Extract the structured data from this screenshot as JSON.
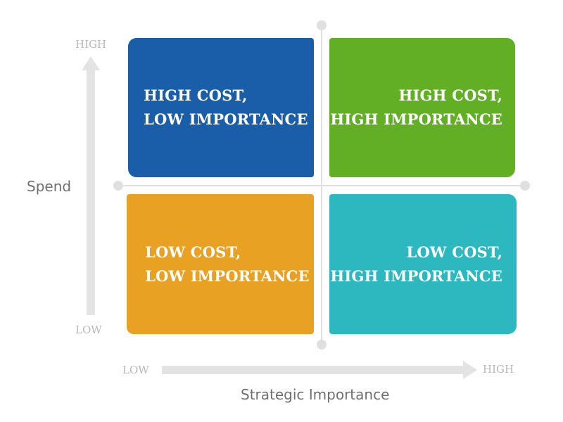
{
  "colors": {
    "top_left": "#1a5da8",
    "top_right": "#62ae25",
    "bottom_left": "#e9a124",
    "bottom_right": "#2db8c0",
    "axis_arrow": "#e3e3e3",
    "divider": "#e0e0e0",
    "tick_label": "#b8b8b8",
    "axis_title": "#6f6f6f"
  },
  "quadrants": {
    "top_left": {
      "line1": "HIGH COST,",
      "line2": "LOW IMPORTANCE"
    },
    "top_right": {
      "line1": "HIGH COST,",
      "line2": "HIGH IMPORTANCE"
    },
    "bottom_left": {
      "line1": "LOW COST,",
      "line2": "LOW IMPORTANCE"
    },
    "bottom_right": {
      "line1": "LOW COST,",
      "line2": "HIGH IMPORTANCE"
    }
  },
  "y_axis": {
    "title": "Spend",
    "high": "HIGH",
    "low": "LOW"
  },
  "x_axis": {
    "title": "Strategic Importance",
    "low": "LOW",
    "high": "HIGH"
  }
}
